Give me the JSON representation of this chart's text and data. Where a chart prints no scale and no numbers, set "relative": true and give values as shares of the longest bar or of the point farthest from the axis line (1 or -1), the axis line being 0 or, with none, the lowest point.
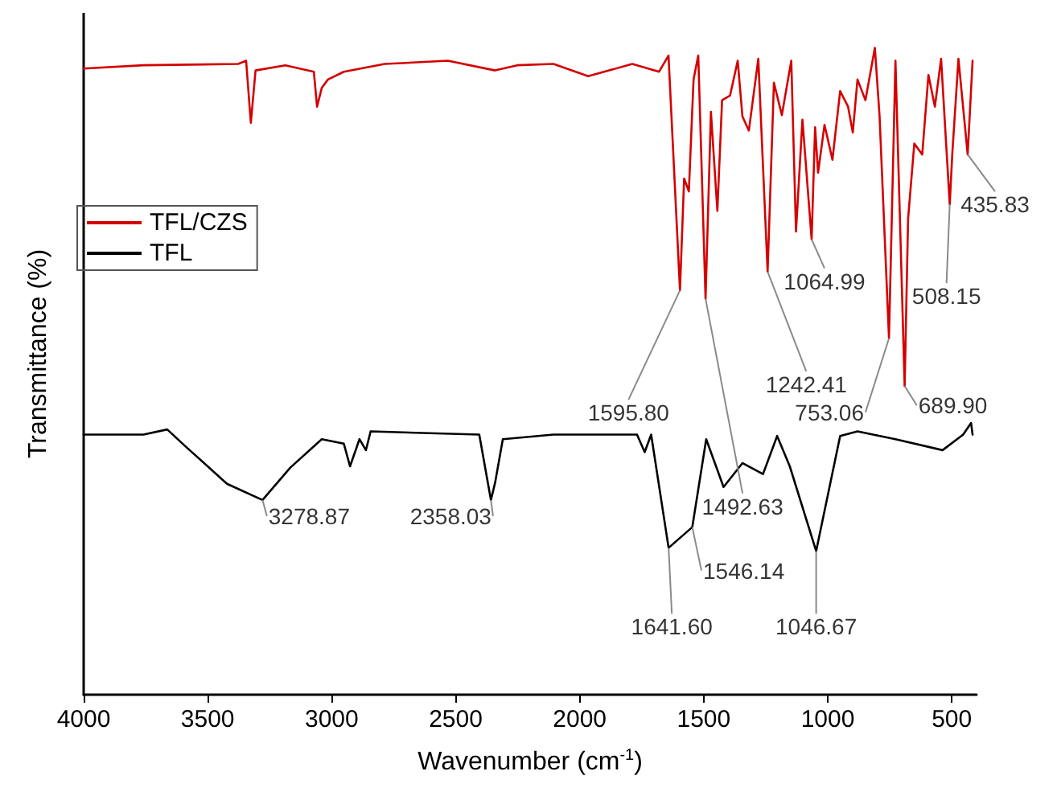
{
  "chart_data": {
    "type": "line",
    "relative": true,
    "xlabel": "Wavenumber (cm$^{-1}$)",
    "ylabel": "Transmittance (%)",
    "xlim": [
      4000,
      400
    ],
    "xticks": [
      4000,
      3500,
      3000,
      2500,
      2000,
      1500,
      1000,
      500
    ],
    "grid": false,
    "legend": "left",
    "marker": "none",
    "line_style": "solid",
    "series": [
      {
        "name": "TFL/CZS",
        "color": "#d40000",
        "x": [
          4000,
          3759,
          3377,
          3345,
          3326,
          3307,
          3187,
          3072,
          3059,
          3040,
          3015,
          2951,
          2786,
          2532,
          2341,
          2252,
          2106,
          1966,
          1788,
          1680,
          1642,
          1595.8,
          1579,
          1560,
          1541,
          1522,
          1492.63,
          1471,
          1445,
          1426,
          1394,
          1363,
          1344,
          1318,
          1280,
          1242.41,
          1217,
          1185,
          1147,
          1128,
          1102,
          1064.99,
          1051,
          1039,
          1013,
          981,
          950,
          918,
          899,
          880,
          848,
          810,
          791,
          753.06,
          727,
          689.9,
          676,
          651,
          619,
          594,
          568,
          543,
          508.15,
          498,
          473,
          435.83,
          416
        ],
        "values": [
          0.968,
          0.973,
          0.975,
          0.98,
          0.884,
          0.965,
          0.973,
          0.963,
          0.909,
          0.938,
          0.951,
          0.963,
          0.975,
          0.98,
          0.965,
          0.973,
          0.975,
          0.956,
          0.975,
          0.963,
          0.988,
          0.625,
          0.798,
          0.778,
          0.951,
          0.988,
          0.612,
          0.901,
          0.748,
          0.919,
          0.926,
          0.98,
          0.894,
          0.872,
          0.983,
          0.654,
          0.946,
          0.896,
          0.98,
          0.716,
          0.889,
          0.704,
          0.877,
          0.807,
          0.881,
          0.827,
          0.933,
          0.909,
          0.869,
          0.951,
          0.919,
          1.0,
          0.894,
          0.551,
          0.98,
          0.477,
          0.736,
          0.852,
          0.835,
          0.958,
          0.909,
          0.983,
          0.758,
          0.835,
          0.983,
          0.835,
          0.98
        ]
      },
      {
        "name": "TFL",
        "color": "#000000",
        "x": [
          4000,
          3759,
          3663,
          3587,
          3422,
          3278.87,
          3167,
          3040,
          2951,
          2926,
          2888,
          2862,
          2843,
          2405,
          2358.03,
          2341,
          2310,
          2106,
          1769,
          1738,
          1712,
          1641.6,
          1546.14,
          1490,
          1420,
          1344,
          1261,
          1204,
          1153,
          1046.67,
          950,
          880,
          727,
          537,
          454,
          422,
          416
        ],
        "values": [
          0.402,
          0.402,
          0.41,
          0.383,
          0.326,
          0.301,
          0.351,
          0.395,
          0.388,
          0.353,
          0.395,
          0.378,
          0.407,
          0.402,
          0.301,
          0.328,
          0.395,
          0.402,
          0.402,
          0.375,
          0.402,
          0.227,
          0.259,
          0.395,
          0.321,
          0.358,
          0.341,
          0.4,
          0.353,
          0.222,
          0.4,
          0.407,
          0.395,
          0.378,
          0.402,
          0.42,
          0.402
        ]
      }
    ],
    "annotations": [
      {
        "text": "1595.80",
        "x": 1595.8,
        "y": 0.625
      },
      {
        "text": "1492.63",
        "x": 1492.63,
        "y": 0.612
      },
      {
        "text": "1242.41",
        "x": 1242.41,
        "y": 0.654
      },
      {
        "text": "1064.99",
        "x": 1064.99,
        "y": 0.704
      },
      {
        "text": "753.06",
        "x": 753.06,
        "y": 0.551
      },
      {
        "text": "689.90",
        "x": 689.9,
        "y": 0.477
      },
      {
        "text": "508.15",
        "x": 508.15,
        "y": 0.758
      },
      {
        "text": "435.83",
        "x": 435.83,
        "y": 0.835
      },
      {
        "text": "3278.87",
        "x": 3278.87,
        "y": 0.301
      },
      {
        "text": "2358.03",
        "x": 2358.03,
        "y": 0.301
      },
      {
        "text": "1641.60",
        "x": 1641.6,
        "y": 0.227
      },
      {
        "text": "1546.14",
        "x": 1546.14,
        "y": 0.259
      },
      {
        "text": "1046.67",
        "x": 1046.67,
        "y": 0.222
      }
    ]
  }
}
